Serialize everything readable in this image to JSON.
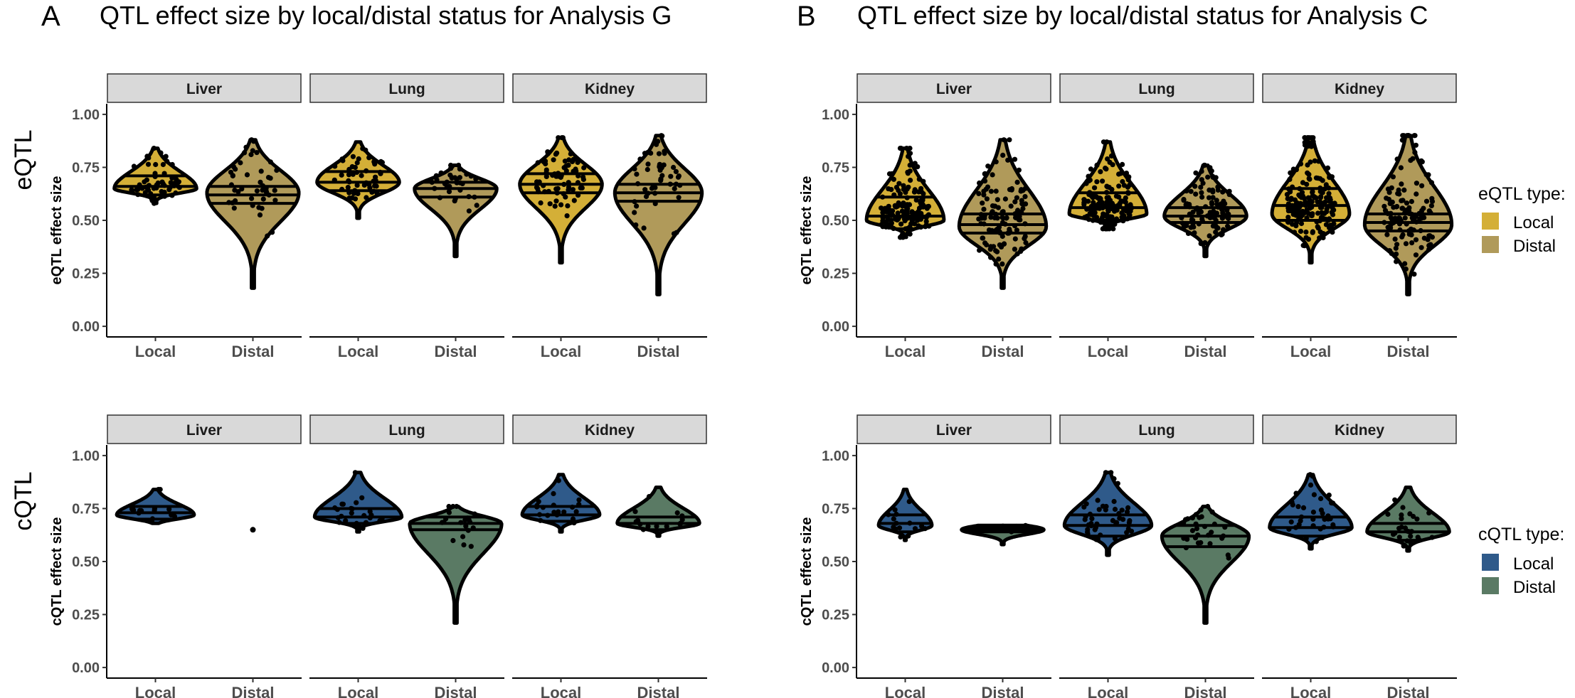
{
  "chart_data": {
    "type": "violin",
    "panels": [
      {
        "letter": "A",
        "title": "QTL effect size by local/distal status for Analysis G"
      },
      {
        "letter": "B",
        "title": "QTL effect size by local/distal status for Analysis C"
      }
    ],
    "rows": [
      {
        "label": "eQTL",
        "ylabel": "eQTL effect size"
      },
      {
        "label": "cQTL",
        "ylabel": "cQTL effect size"
      }
    ],
    "facets": [
      "Liver",
      "Lung",
      "Kidney"
    ],
    "categories": [
      "Local",
      "Distal"
    ],
    "yticks": [
      "0.00",
      "0.25",
      "0.50",
      "0.75",
      "1.00"
    ],
    "ylim": [
      -0.05,
      1.05
    ],
    "legends": [
      {
        "title": "eQTL type:",
        "items": [
          {
            "label": "Local",
            "color": "#D4AF37"
          },
          {
            "label": "Distal",
            "color": "#B09A5A"
          }
        ]
      },
      {
        "title": "cQTL type:",
        "items": [
          {
            "label": "Local",
            "color": "#2F5A8A"
          },
          {
            "label": "Distal",
            "color": "#5A7A64"
          }
        ]
      }
    ],
    "colors": {
      "eQTL": {
        "Local": "#D4AF37",
        "Distal": "#B09A5A"
      },
      "cQTL": {
        "Local": "#2F5A8A",
        "Distal": "#5A7A64"
      }
    },
    "violins": {
      "A": {
        "eQTL": {
          "Liver": {
            "Local": {
              "min": 0.58,
              "max": 0.84,
              "peak": 0.65,
              "q": [
                0.62,
                0.66,
                0.71
              ],
              "w": 0.85,
              "n": 60
            },
            "Distal": {
              "min": 0.18,
              "max": 0.88,
              "peak": 0.63,
              "q": [
                0.58,
                0.62,
                0.66
              ],
              "w": 0.95,
              "n": 45
            }
          },
          "Lung": {
            "Local": {
              "min": 0.51,
              "max": 0.87,
              "peak": 0.68,
              "q": [
                0.64,
                0.68,
                0.73
              ],
              "w": 0.85,
              "n": 50
            },
            "Distal": {
              "min": 0.33,
              "max": 0.76,
              "peak": 0.65,
              "q": [
                0.61,
                0.65,
                0.68
              ],
              "w": 0.85,
              "n": 35
            }
          },
          "Kidney": {
            "Local": {
              "min": 0.3,
              "max": 0.89,
              "peak": 0.67,
              "q": [
                0.63,
                0.67,
                0.72
              ],
              "w": 0.85,
              "n": 70
            },
            "Distal": {
              "min": 0.15,
              "max": 0.9,
              "peak": 0.63,
              "q": [
                0.59,
                0.63,
                0.67
              ],
              "w": 0.9,
              "n": 50
            }
          }
        },
        "cQTL": {
          "Liver": {
            "Local": {
              "min": 0.68,
              "max": 0.84,
              "peak": 0.72,
              "q": [
                0.7,
                0.73,
                0.76
              ],
              "w": 0.8,
              "n": 15
            },
            "Distal": {
              "single": 0.65
            }
          },
          "Lung": {
            "Local": {
              "min": 0.64,
              "max": 0.92,
              "peak": 0.71,
              "q": [
                0.68,
                0.71,
                0.75
              ],
              "w": 0.9,
              "n": 25
            },
            "Distal": {
              "min": 0.21,
              "max": 0.76,
              "peak": 0.68,
              "q": [
                0.65,
                0.68,
                0.71
              ],
              "w": 0.95,
              "n": 20
            }
          },
          "Kidney": {
            "Local": {
              "min": 0.64,
              "max": 0.91,
              "peak": 0.72,
              "q": [
                0.69,
                0.72,
                0.76
              ],
              "w": 0.8,
              "n": 20
            },
            "Distal": {
              "min": 0.62,
              "max": 0.85,
              "peak": 0.68,
              "q": [
                0.65,
                0.68,
                0.71
              ],
              "w": 0.85,
              "n": 15
            }
          }
        }
      },
      "B": {
        "eQTL": {
          "Liver": {
            "Local": {
              "min": 0.42,
              "max": 0.84,
              "peak": 0.5,
              "q": [
                0.46,
                0.52,
                0.61
              ],
              "w": 0.8,
              "n": 160
            },
            "Distal": {
              "min": 0.18,
              "max": 0.88,
              "peak": 0.47,
              "q": [
                0.44,
                0.48,
                0.53
              ],
              "w": 0.9,
              "n": 120
            }
          },
          "Lung": {
            "Local": {
              "min": 0.46,
              "max": 0.87,
              "peak": 0.53,
              "q": [
                0.5,
                0.56,
                0.63
              ],
              "w": 0.8,
              "n": 160
            },
            "Distal": {
              "min": 0.33,
              "max": 0.76,
              "peak": 0.52,
              "q": [
                0.49,
                0.52,
                0.56
              ],
              "w": 0.85,
              "n": 110
            }
          },
          "Kidney": {
            "Local": {
              "min": 0.3,
              "max": 0.89,
              "peak": 0.53,
              "q": [
                0.5,
                0.57,
                0.65
              ],
              "w": 0.8,
              "n": 180
            },
            "Distal": {
              "min": 0.15,
              "max": 0.9,
              "peak": 0.48,
              "q": [
                0.45,
                0.49,
                0.53
              ],
              "w": 0.9,
              "n": 130
            }
          }
        },
        "cQTL": {
          "Liver": {
            "Local": {
              "min": 0.6,
              "max": 0.84,
              "peak": 0.67,
              "q": [
                0.64,
                0.68,
                0.72
              ],
              "w": 0.55,
              "n": 15
            },
            "Distal": {
              "min": 0.58,
              "max": 0.67,
              "peak": 0.65,
              "q": [
                0.64,
                0.65,
                0.66
              ],
              "w": 0.85,
              "n": 12
            }
          },
          "Lung": {
            "Local": {
              "min": 0.53,
              "max": 0.92,
              "peak": 0.67,
              "q": [
                0.62,
                0.67,
                0.72
              ],
              "w": 0.9,
              "n": 45
            },
            "Distal": {
              "min": 0.21,
              "max": 0.76,
              "peak": 0.62,
              "q": [
                0.57,
                0.62,
                0.67
              ],
              "w": 0.9,
              "n": 30
            }
          },
          "Kidney": {
            "Local": {
              "min": 0.56,
              "max": 0.91,
              "peak": 0.66,
              "q": [
                0.62,
                0.66,
                0.71
              ],
              "w": 0.85,
              "n": 35
            },
            "Distal": {
              "min": 0.55,
              "max": 0.85,
              "peak": 0.64,
              "q": [
                0.6,
                0.64,
                0.68
              ],
              "w": 0.85,
              "n": 25
            }
          }
        }
      }
    }
  }
}
